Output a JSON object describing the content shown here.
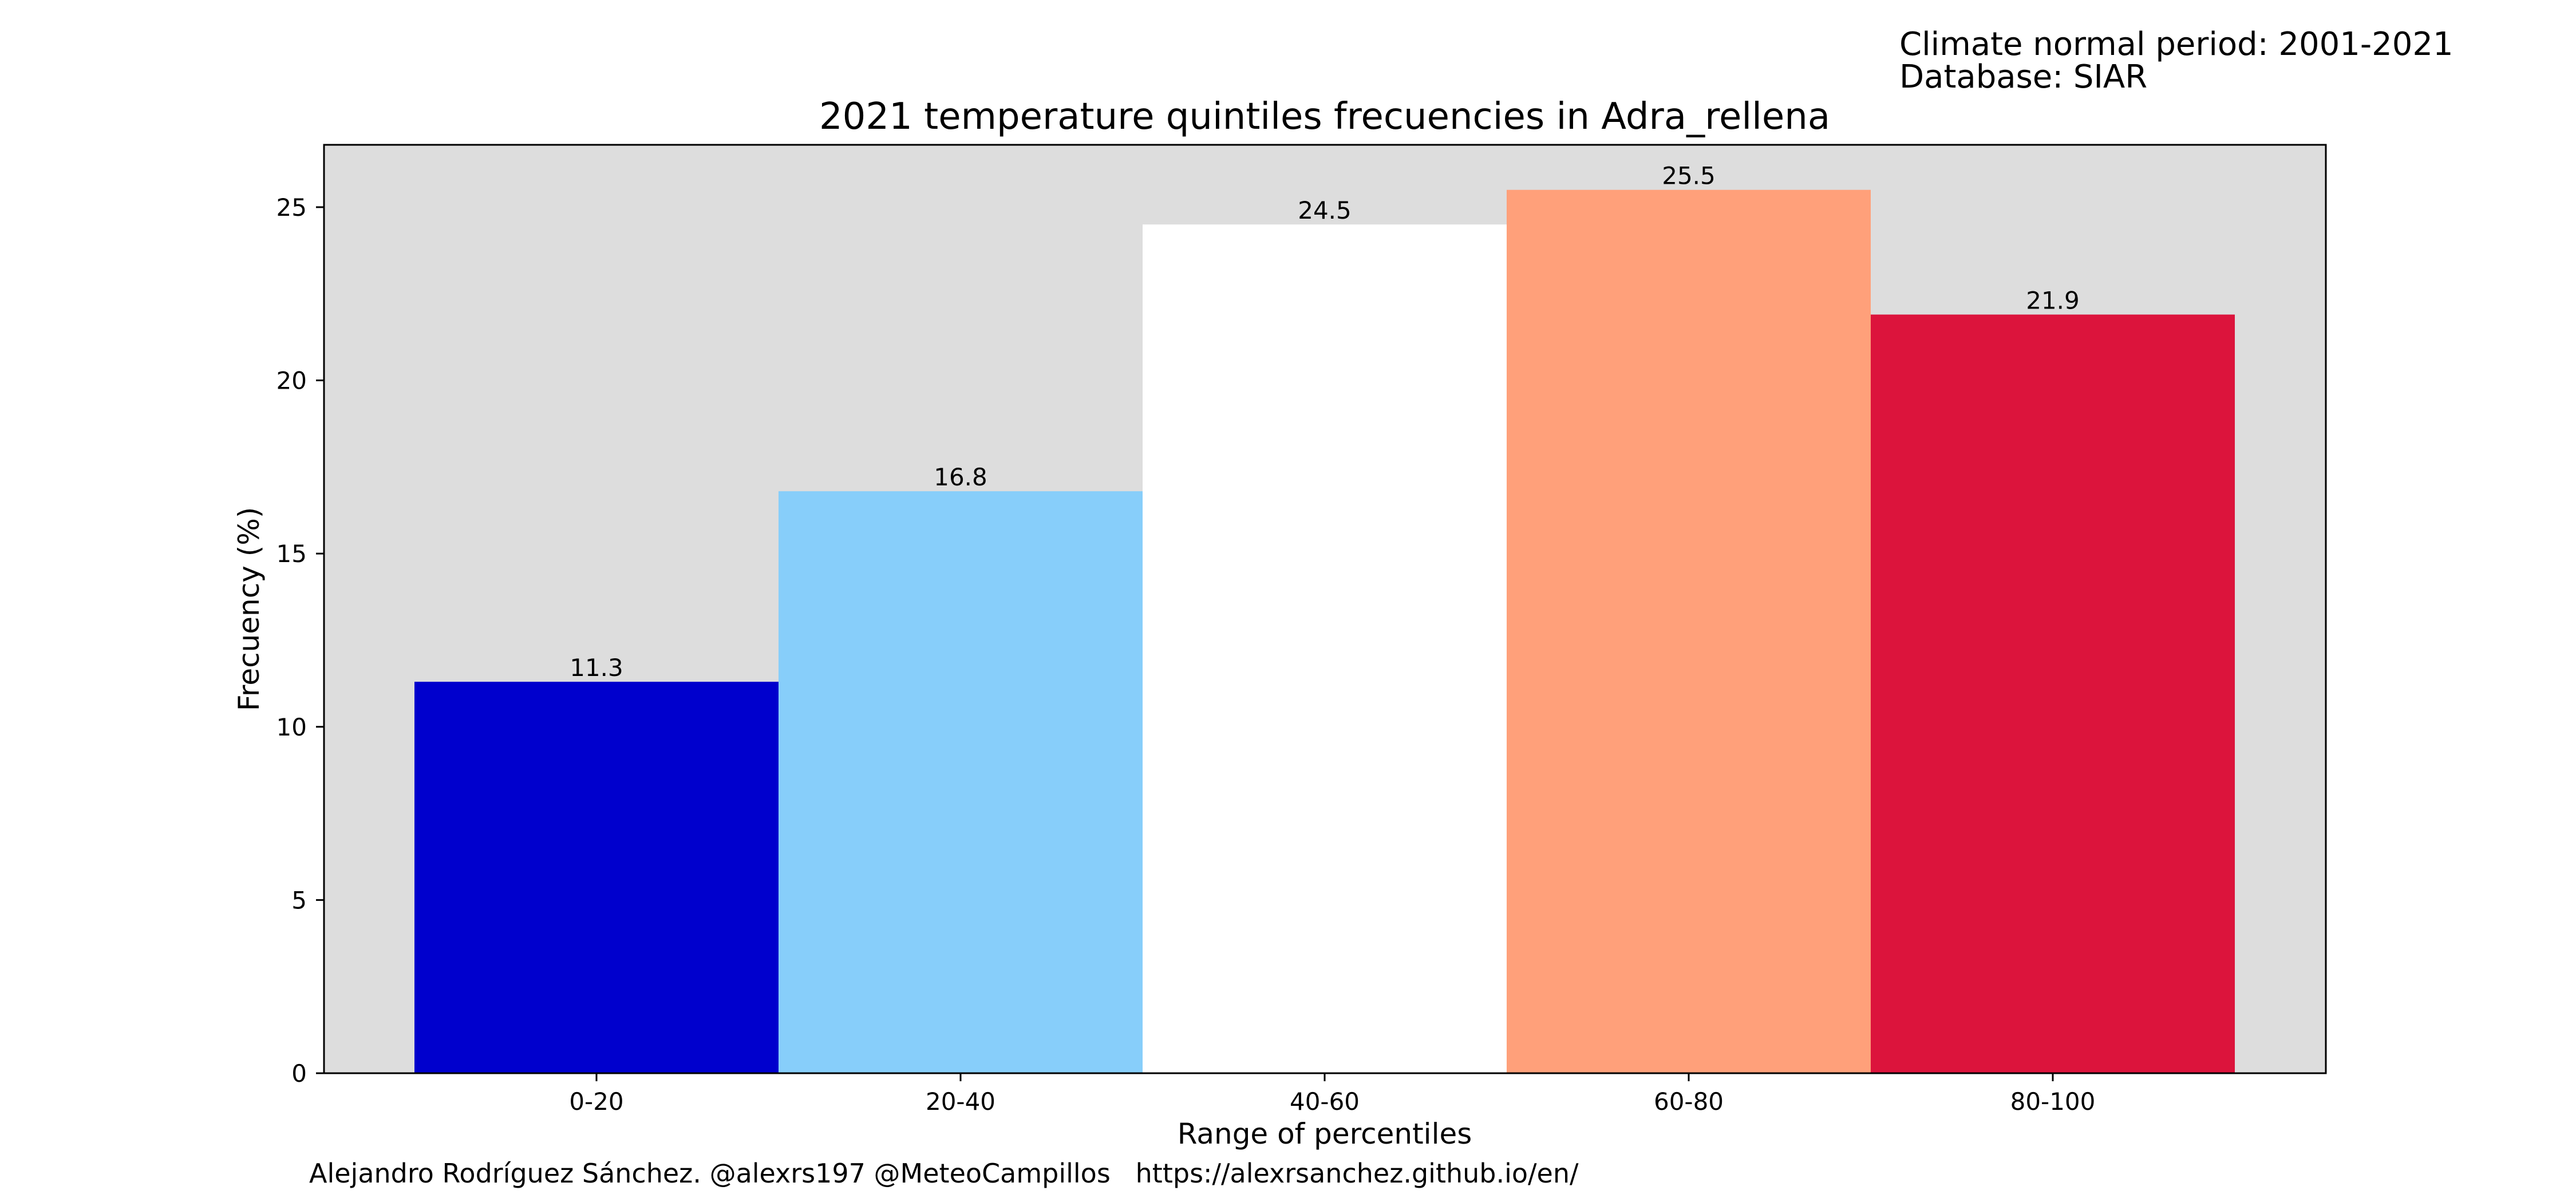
{
  "header": {
    "climate_period": "Climate normal period: 2001-2021",
    "database": "Database: SIAR"
  },
  "footer": {
    "credits": "Alejandro Rodríguez Sánchez. @alexrs197 @MeteoCampillos   https://alexrsanchez.github.io/en/"
  },
  "chart_data": {
    "type": "bar",
    "title": "2021 temperature quintiles frecuencies in Adra_rellena",
    "xlabel": "Range of percentiles",
    "ylabel": "Frecuency (%)",
    "categories": [
      "0-20",
      "20-40",
      "40-60",
      "60-80",
      "80-100"
    ],
    "values": [
      11.3,
      16.8,
      24.5,
      25.5,
      21.9
    ],
    "value_labels": [
      "11.3",
      "16.8",
      "24.5",
      "25.5",
      "21.9"
    ],
    "colors": [
      "#0000cd",
      "#87cefa",
      "#ffffff",
      "#ffa07a",
      "#dc143c"
    ],
    "ylim": [
      0,
      26.8
    ],
    "yticks": [
      0,
      5,
      10,
      15,
      20,
      25
    ],
    "ytick_labels": [
      "0",
      "5",
      "10",
      "15",
      "20",
      "25"
    ],
    "plot_background": "#dddddd",
    "grid": false,
    "legend": "none"
  }
}
